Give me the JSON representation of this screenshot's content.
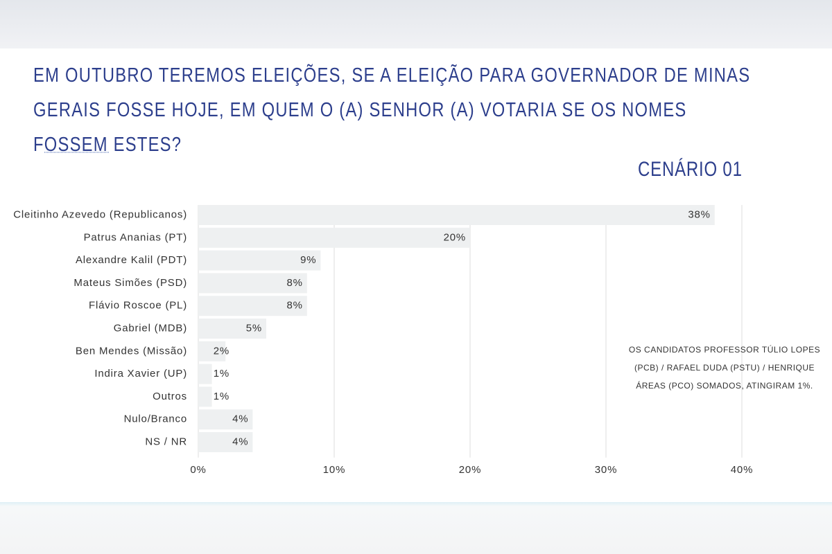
{
  "chart_data": {
    "type": "bar",
    "orientation": "horizontal",
    "title": "EM OUTUBRO TEREMOS ELEIÇÕES, SE A ELEIÇÃO PARA GOVERNADOR DE MINAS GERAIS FOSSE HOJE, EM QUEM O (A) SENHOR (A) VOTARIA SE OS NOMES FOSSEM ESTES?",
    "subtitle": "CENÁRIO 01",
    "annotation": "OS CANDIDATOS PROFESSOR TÚLIO LOPES (PCB) / RAFAEL DUDA (PSTU) / HENRIQUE ÁREAS (PCO) SOMADOS, ATINGIRAM 1%.",
    "categories": [
      "Cleitinho Azevedo (Republicanos)",
      "Patrus Ananias (PT)",
      "Alexandre Kalil (PDT)",
      "Mateus Simões (PSD)",
      "Flávio Roscoe (PL)",
      "Gabriel (MDB)",
      "Ben Mendes (Missão)",
      "Indira Xavier (UP)",
      "Outros",
      "Nulo/Branco",
      "NS / NR"
    ],
    "values": [
      38,
      20,
      9,
      8,
      8,
      5,
      2,
      1,
      1,
      4,
      4
    ],
    "value_labels": [
      "38%",
      "20%",
      "9%",
      "8%",
      "8%",
      "5%",
      "2%",
      "1%",
      "1%",
      "4%",
      "4%"
    ],
    "color": "#eef0f1",
    "xlim": [
      0,
      40
    ],
    "xticks": [
      {
        "value": 0,
        "label": "0%"
      },
      {
        "value": 10,
        "label": "10%"
      },
      {
        "value": 20,
        "label": "20%"
      },
      {
        "value": 30,
        "label": "30%"
      },
      {
        "value": 40,
        "label": "40%"
      }
    ],
    "grid": true
  }
}
